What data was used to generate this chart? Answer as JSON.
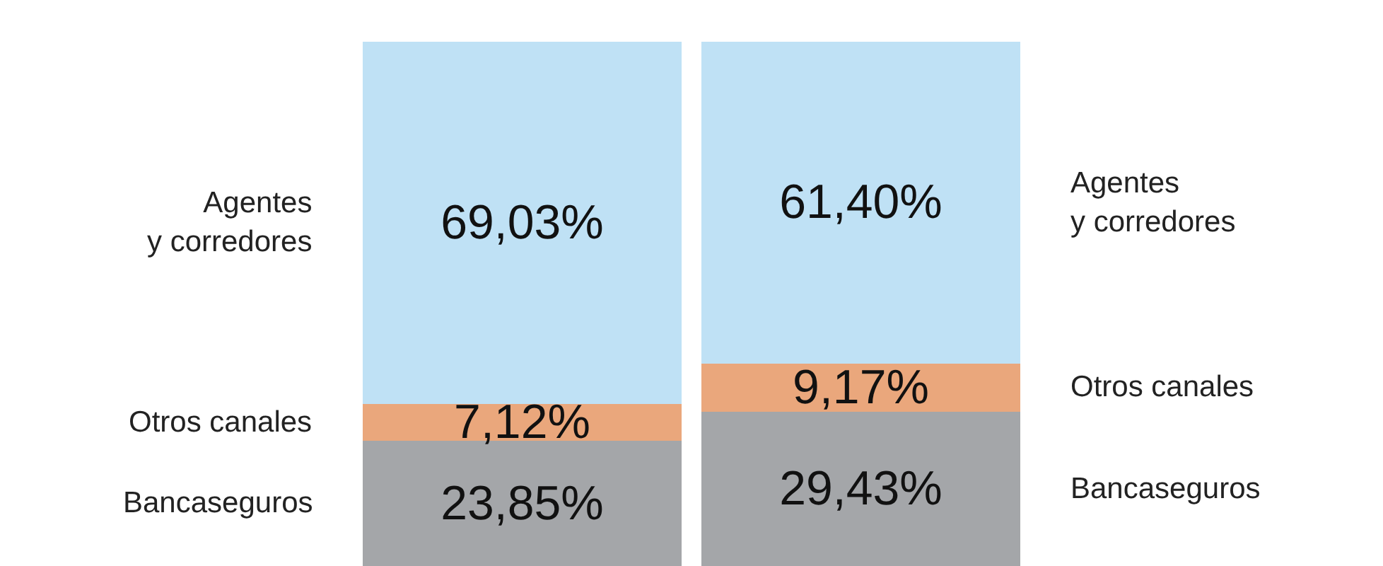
{
  "chart_data": {
    "type": "bar",
    "stacked": true,
    "categories": [
      null,
      null
    ],
    "series": [
      {
        "name": "Bancaseguros",
        "color": "#a4a6a9",
        "values": [
          23.85,
          29.43
        ],
        "value_labels": [
          "23,85%",
          "29,43%"
        ]
      },
      {
        "name": "Otros canales",
        "color": "#eaa77c",
        "values": [
          7.12,
          9.17
        ],
        "value_labels": [
          "7,12%",
          "9,17%"
        ]
      },
      {
        "name": "Agentes y corredores",
        "color": "#bfe1f5",
        "values": [
          69.03,
          61.4
        ],
        "value_labels": [
          "69,03%",
          "61,40%"
        ]
      }
    ],
    "legend": false
  }
}
